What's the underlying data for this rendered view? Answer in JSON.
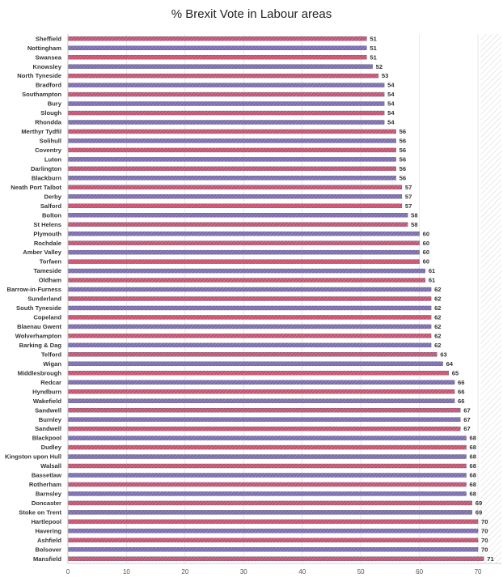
{
  "chart_data": {
    "type": "bar",
    "orientation": "horizontal",
    "title": "% Brexit Vote in Labour areas",
    "xlim": [
      0,
      74
    ],
    "xticks": [
      "0",
      "10",
      "20",
      "30",
      "40",
      "50",
      "60",
      "70"
    ],
    "grid": true,
    "colors": [
      "#c8506e",
      "#7b6bb0"
    ],
    "categories": [
      "Sheffield",
      "Nottingham",
      "Swansea",
      "Knowsley",
      "North Tyneside",
      "Bradford",
      "Southampton",
      "Bury",
      "Slough",
      "Rhondda",
      "Merthyr Tydfil",
      "Solihull",
      "Coventry",
      "Luton",
      "Darlington",
      "Blackburn",
      "Neath Port Talbot",
      "Derby",
      "Salford",
      "Bolton",
      "St Helens",
      "Plymouth",
      "Rochdale",
      "Amber Valley",
      "Torfaen",
      "Tameside",
      "Oldham",
      "Barrow-in-Furness",
      "Sunderland",
      "South Tyneside",
      "Copeland",
      "Blaenau Gwent",
      "Wolverhampton",
      "Barking & Dag",
      "Telford",
      "Wigan",
      "Middlesbrough",
      "Redcar",
      "Hyndburn",
      "Wakefield",
      "Sandwell",
      "Burnley",
      "Sandwell",
      "Blackpool",
      "Dudley",
      "Kingston upon Hull",
      "Walsall",
      "Bassetlaw",
      "Rotherham",
      "Barnsley",
      "Doncaster",
      "Stoke on Trent",
      "Hartlepool",
      "Havering",
      "Ashfield",
      "Bolsover",
      "Mansfield"
    ],
    "values": [
      51,
      51,
      51,
      52,
      53,
      54,
      54,
      54,
      54,
      54,
      56,
      56,
      56,
      56,
      56,
      56,
      57,
      57,
      57,
      58,
      58,
      60,
      60,
      60,
      60,
      61,
      61,
      62,
      62,
      62,
      62,
      62,
      62,
      62,
      63,
      64,
      65,
      66,
      66,
      66,
      67,
      67,
      67,
      68,
      68,
      68,
      68,
      68,
      68,
      68,
      69,
      69,
      70,
      70,
      70,
      70,
      71
    ]
  }
}
